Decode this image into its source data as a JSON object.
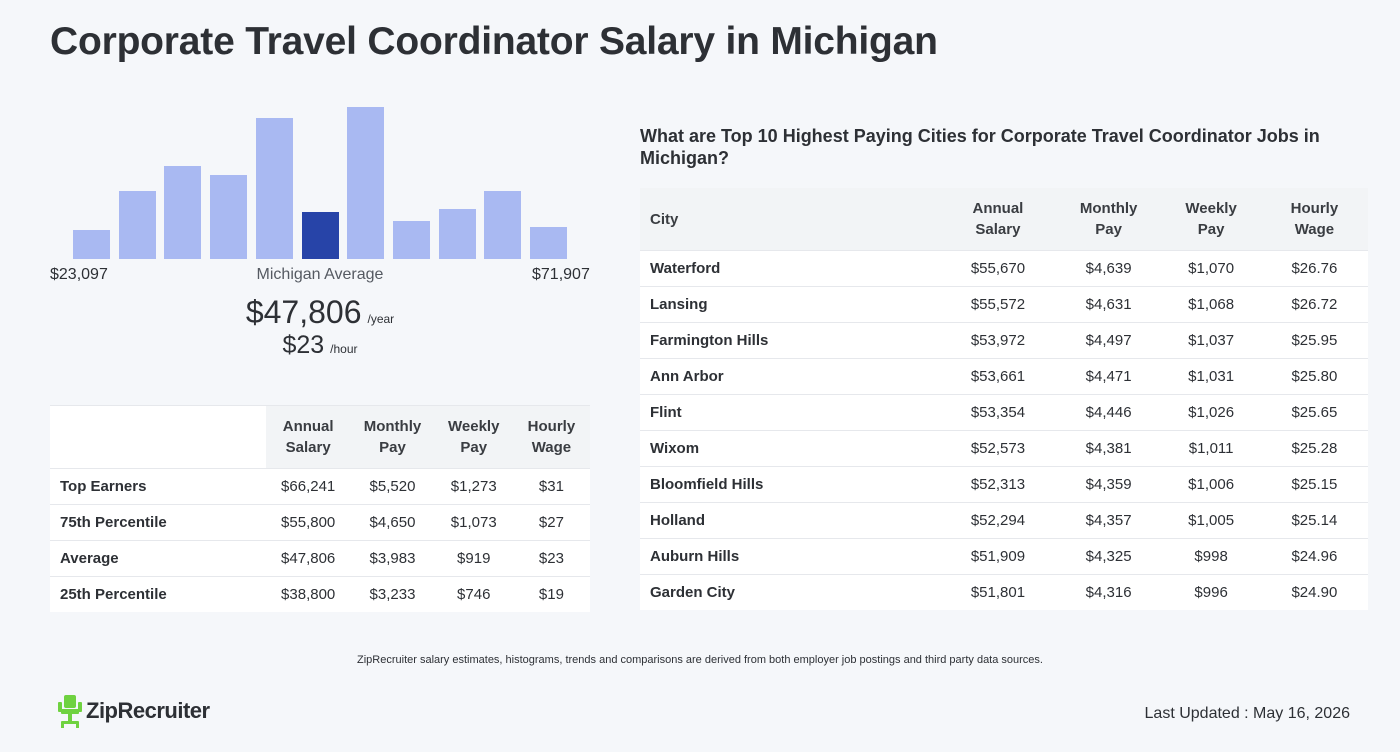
{
  "page": {
    "title": "Corporate Travel Coordinator Salary in Michigan"
  },
  "histogram": {
    "min_label": "$23,097",
    "max_label": "$71,907",
    "center_label": "Michigan Average",
    "bars": [
      {
        "level": 0.19,
        "highlight": false
      },
      {
        "level": 0.45,
        "highlight": false
      },
      {
        "level": 0.61,
        "highlight": false
      },
      {
        "level": 0.55,
        "highlight": false
      },
      {
        "level": 0.93,
        "highlight": false
      },
      {
        "level": 0.31,
        "highlight": true
      },
      {
        "level": 1.0,
        "highlight": false
      },
      {
        "level": 0.25,
        "highlight": false
      },
      {
        "level": 0.33,
        "highlight": false
      },
      {
        "level": 0.45,
        "highlight": false
      },
      {
        "level": 0.21,
        "highlight": false
      }
    ],
    "colors": {
      "bar": "#a9b9f2",
      "highlight": "#2744a8"
    }
  },
  "average": {
    "yearly": "$47,806",
    "yearly_unit": "/year",
    "hourly": "$23",
    "hourly_unit": "/hour"
  },
  "percentile_table": {
    "headers": [
      "Annual Salary",
      "Monthly Pay",
      "Weekly Pay",
      "Hourly Wage"
    ],
    "rows": [
      {
        "label": "Top Earners",
        "values": [
          "$66,241",
          "$5,520",
          "$1,273",
          "$31"
        ]
      },
      {
        "label": "75th Percentile",
        "values": [
          "$55,800",
          "$4,650",
          "$1,073",
          "$27"
        ]
      },
      {
        "label": "Average",
        "values": [
          "$47,806",
          "$3,983",
          "$919",
          "$23"
        ]
      },
      {
        "label": "25th Percentile",
        "values": [
          "$38,800",
          "$3,233",
          "$746",
          "$19"
        ]
      }
    ]
  },
  "cities": {
    "heading": "What are Top 10 Highest Paying Cities for Corporate Travel Coordinator Jobs in Michigan?",
    "headers": [
      "City",
      "Annual Salary",
      "Monthly Pay",
      "Weekly Pay",
      "Hourly Wage"
    ],
    "rows": [
      {
        "city": "Waterford",
        "values": [
          "$55,670",
          "$4,639",
          "$1,070",
          "$26.76"
        ]
      },
      {
        "city": "Lansing",
        "values": [
          "$55,572",
          "$4,631",
          "$1,068",
          "$26.72"
        ]
      },
      {
        "city": "Farmington Hills",
        "values": [
          "$53,972",
          "$4,497",
          "$1,037",
          "$25.95"
        ]
      },
      {
        "city": "Ann Arbor",
        "values": [
          "$53,661",
          "$4,471",
          "$1,031",
          "$25.80"
        ]
      },
      {
        "city": "Flint",
        "values": [
          "$53,354",
          "$4,446",
          "$1,026",
          "$25.65"
        ]
      },
      {
        "city": "Wixom",
        "values": [
          "$52,573",
          "$4,381",
          "$1,011",
          "$25.28"
        ]
      },
      {
        "city": "Bloomfield Hills",
        "values": [
          "$52,313",
          "$4,359",
          "$1,006",
          "$25.15"
        ]
      },
      {
        "city": "Holland",
        "values": [
          "$52,294",
          "$4,357",
          "$1,005",
          "$25.14"
        ]
      },
      {
        "city": "Auburn Hills",
        "values": [
          "$51,909",
          "$4,325",
          "$998",
          "$24.96"
        ]
      },
      {
        "city": "Garden City",
        "values": [
          "$51,801",
          "$4,316",
          "$996",
          "$24.90"
        ]
      }
    ]
  },
  "footer": {
    "note": "ZipRecruiter salary estimates, histograms, trends and comparisons are derived from both employer job postings and third party data sources.",
    "logo_text": "ZipRecruiter",
    "logo_icon": "ziprecruiter-chair-logo",
    "logo_color": "#6fd240",
    "updated": "Last Updated : May 16, 2026"
  }
}
